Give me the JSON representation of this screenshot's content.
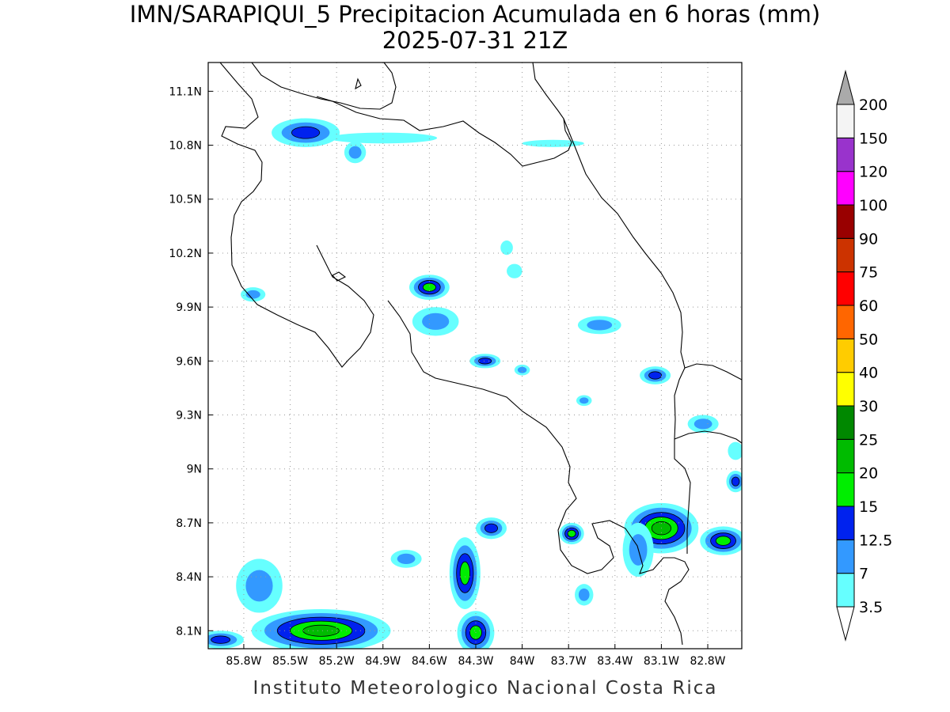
{
  "title": {
    "line1": "IMN/SARAPIQUI_5 Precipitacion Acumulada en 6 horas (mm)",
    "line2": "2025-07-31 21Z"
  },
  "footer": "Instituto Meteorologico Nacional Costa Rica",
  "map": {
    "lon_range": [
      -86.03,
      -82.58
    ],
    "lat_range": [
      8.0,
      11.26
    ],
    "lon_ticks": [
      {
        "value": -85.8,
        "label": "85.8W"
      },
      {
        "value": -85.5,
        "label": "85.5W"
      },
      {
        "value": -85.2,
        "label": "85.2W"
      },
      {
        "value": -84.9,
        "label": "84.9W"
      },
      {
        "value": -84.6,
        "label": "84.6W"
      },
      {
        "value": -84.3,
        "label": "84.3W"
      },
      {
        "value": -84.0,
        "label": "84W"
      },
      {
        "value": -83.7,
        "label": "83.7W"
      },
      {
        "value": -83.4,
        "label": "83.4W"
      },
      {
        "value": -83.1,
        "label": "83.1W"
      },
      {
        "value": -82.8,
        "label": "82.8W"
      }
    ],
    "lat_ticks": [
      {
        "value": 8.1,
        "label": "8.1N"
      },
      {
        "value": 8.4,
        "label": "8.4N"
      },
      {
        "value": 8.7,
        "label": "8.7N"
      },
      {
        "value": 9.0,
        "label": "9N"
      },
      {
        "value": 9.3,
        "label": "9.3N"
      },
      {
        "value": 9.6,
        "label": "9.6N"
      },
      {
        "value": 9.9,
        "label": "9.9N"
      },
      {
        "value": 10.2,
        "label": "10.2N"
      },
      {
        "value": 10.5,
        "label": "10.5N"
      },
      {
        "value": 10.8,
        "label": "10.8N"
      },
      {
        "value": 11.1,
        "label": "11.1N"
      }
    ],
    "grid": true,
    "coastline_color": "#000000"
  },
  "colorbar": {
    "position": "right",
    "levels": [
      {
        "value": "3.5",
        "color": "#66ffff"
      },
      {
        "value": "7",
        "color": "#3399ff"
      },
      {
        "value": "12.5",
        "color": "#0022ee"
      },
      {
        "value": "15",
        "color": "#00ee00"
      },
      {
        "value": "20",
        "color": "#00bb00"
      },
      {
        "value": "25",
        "color": "#008800"
      },
      {
        "value": "30",
        "color": "#ffff00"
      },
      {
        "value": "40",
        "color": "#ffcc00"
      },
      {
        "value": "50",
        "color": "#ff6600"
      },
      {
        "value": "60",
        "color": "#ff0000"
      },
      {
        "value": "75",
        "color": "#cc3300"
      },
      {
        "value": "90",
        "color": "#990000"
      },
      {
        "value": "100",
        "color": "#ff00ff"
      },
      {
        "value": "120",
        "color": "#9933cc"
      },
      {
        "value": "150",
        "color": "#f4f4f4"
      },
      {
        "value": "200",
        "color": "#aaaaaa"
      }
    ]
  },
  "precip_cells": [
    {
      "lon": -85.4,
      "lat": 10.87,
      "rx": 0.22,
      "ry": 0.08,
      "levels": 3
    },
    {
      "lon": -85.08,
      "lat": 10.76,
      "rx": 0.07,
      "ry": 0.06,
      "levels": 2
    },
    {
      "lon": -84.9,
      "lat": 10.84,
      "rx": 0.35,
      "ry": 0.03,
      "levels": 1
    },
    {
      "lon": -83.8,
      "lat": 10.81,
      "rx": 0.2,
      "ry": 0.02,
      "levels": 1
    },
    {
      "lon": -84.6,
      "lat": 10.01,
      "rx": 0.13,
      "ry": 0.07,
      "levels": 4
    },
    {
      "lon": -84.56,
      "lat": 9.82,
      "rx": 0.15,
      "ry": 0.08,
      "levels": 2
    },
    {
      "lon": -85.74,
      "lat": 9.97,
      "rx": 0.08,
      "ry": 0.04,
      "levels": 2
    },
    {
      "lon": -84.24,
      "lat": 9.6,
      "rx": 0.1,
      "ry": 0.04,
      "levels": 3
    },
    {
      "lon": -84.0,
      "lat": 9.55,
      "rx": 0.05,
      "ry": 0.03,
      "levels": 2
    },
    {
      "lon": -83.5,
      "lat": 9.8,
      "rx": 0.14,
      "ry": 0.05,
      "levels": 2
    },
    {
      "lon": -83.14,
      "lat": 9.52,
      "rx": 0.1,
      "ry": 0.05,
      "levels": 3
    },
    {
      "lon": -82.83,
      "lat": 9.25,
      "rx": 0.1,
      "ry": 0.05,
      "levels": 2
    },
    {
      "lon": -82.62,
      "lat": 8.93,
      "rx": 0.06,
      "ry": 0.06,
      "levels": 3
    },
    {
      "lon": -83.68,
      "lat": 8.64,
      "rx": 0.08,
      "ry": 0.06,
      "levels": 4
    },
    {
      "lon": -83.1,
      "lat": 8.67,
      "rx": 0.24,
      "ry": 0.14,
      "levels": 5
    },
    {
      "lon": -82.7,
      "lat": 8.6,
      "rx": 0.15,
      "ry": 0.08,
      "levels": 4
    },
    {
      "lon": -84.37,
      "lat": 8.42,
      "rx": 0.1,
      "ry": 0.2,
      "levels": 4
    },
    {
      "lon": -84.3,
      "lat": 8.09,
      "rx": 0.12,
      "ry": 0.12,
      "levels": 4
    },
    {
      "lon": -85.3,
      "lat": 8.1,
      "rx": 0.45,
      "ry": 0.12,
      "levels": 5
    },
    {
      "lon": -85.95,
      "lat": 8.05,
      "rx": 0.15,
      "ry": 0.05,
      "levels": 3
    },
    {
      "lon": -85.7,
      "lat": 8.35,
      "rx": 0.15,
      "ry": 0.15,
      "levels": 2
    },
    {
      "lon": -84.75,
      "lat": 8.5,
      "rx": 0.1,
      "ry": 0.05,
      "levels": 2
    },
    {
      "lon": -84.2,
      "lat": 8.67,
      "rx": 0.1,
      "ry": 0.06,
      "levels": 3
    },
    {
      "lon": -83.6,
      "lat": 8.3,
      "rx": 0.06,
      "ry": 0.06,
      "levels": 2
    },
    {
      "lon": -84.05,
      "lat": 10.1,
      "rx": 0.05,
      "ry": 0.04,
      "levels": 1
    },
    {
      "lon": -84.1,
      "lat": 10.23,
      "rx": 0.04,
      "ry": 0.04,
      "levels": 1
    },
    {
      "lon": -83.6,
      "lat": 9.38,
      "rx": 0.05,
      "ry": 0.03,
      "levels": 2
    },
    {
      "lon": -82.62,
      "lat": 9.1,
      "rx": 0.05,
      "ry": 0.05,
      "levels": 1
    },
    {
      "lon": -83.25,
      "lat": 8.55,
      "rx": 0.1,
      "ry": 0.15,
      "levels": 2
    }
  ]
}
